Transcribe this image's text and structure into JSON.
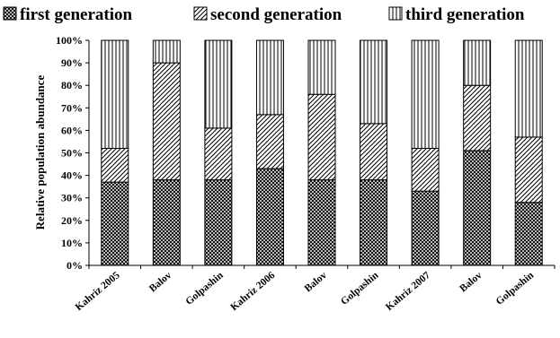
{
  "chart_data": {
    "type": "bar",
    "stacked": true,
    "percent": true,
    "categories": [
      "Kahriz 2005",
      "Balov",
      "Golpashin",
      "Kahriz 2006",
      "Balov",
      "Golpashin",
      "Kahriz 2007",
      "Balov",
      "Golpashin"
    ],
    "series": [
      {
        "name": "first generation",
        "pattern": "crosshatch",
        "values": [
          37,
          38,
          38,
          43,
          38,
          38,
          33,
          51,
          28
        ]
      },
      {
        "name": "second generation",
        "pattern": "diagonal",
        "values": [
          15,
          52,
          23,
          24,
          38,
          25,
          19,
          29,
          29
        ]
      },
      {
        "name": "third generation",
        "pattern": "vertical",
        "values": [
          48,
          10,
          39,
          33,
          24,
          37,
          48,
          20,
          43
        ]
      }
    ],
    "ylabel": "Relative population abundance",
    "ylim": [
      0,
      100
    ],
    "yticks": [
      "0%",
      "10%",
      "20%",
      "30%",
      "40%",
      "50%",
      "60%",
      "70%",
      "80%",
      "90%",
      "100%"
    ],
    "legend_position": "top",
    "grid": false
  }
}
